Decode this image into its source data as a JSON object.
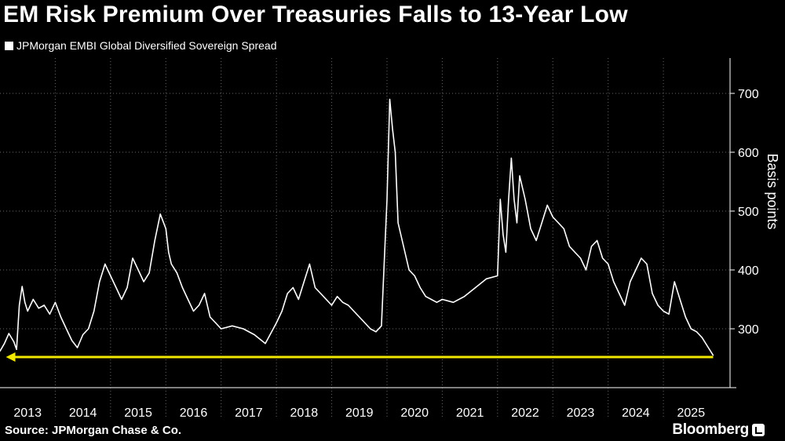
{
  "header": {
    "title": "EM Risk Premium Over Treasuries Falls to 13-Year Low",
    "legend_label": "JPMorgan EMBI Global Diversified Sovereign Spread"
  },
  "footer": {
    "source": "Source: JPMorgan Chase & Co.",
    "brand": "Bloomberg"
  },
  "colors": {
    "background": "#000000",
    "series": "#ffffff",
    "reference": "#f0e800",
    "grid": "#666666"
  },
  "chart_data": {
    "type": "line",
    "title": "EM Risk Premium Over Treasuries Falls to 13-Year Low",
    "xlabel": "",
    "ylabel": "Basis points",
    "ylim": [
      200,
      760
    ],
    "xlim": [
      2013,
      2025.95
    ],
    "x_ticks": [
      "2013",
      "2014",
      "2015",
      "2016",
      "2017",
      "2018",
      "2019",
      "2020",
      "2021",
      "2022",
      "2023",
      "2024",
      "2025"
    ],
    "y_ticks": [
      300,
      400,
      500,
      600,
      700
    ],
    "grid": "vertical dotted",
    "legend": "top-left",
    "series": [
      {
        "name": "JPMorgan EMBI Global Diversified Sovereign Spread",
        "x": [
          2013.0,
          2013.08,
          2013.16,
          2013.25,
          2013.3,
          2013.35,
          2013.4,
          2013.45,
          2013.5,
          2013.6,
          2013.7,
          2013.8,
          2013.9,
          2014.0,
          2014.1,
          2014.2,
          2014.3,
          2014.4,
          2014.5,
          2014.6,
          2014.7,
          2014.8,
          2014.9,
          2015.0,
          2015.1,
          2015.2,
          2015.3,
          2015.4,
          2015.5,
          2015.6,
          2015.7,
          2015.8,
          2015.9,
          2016.0,
          2016.05,
          2016.1,
          2016.2,
          2016.3,
          2016.4,
          2016.5,
          2016.6,
          2016.7,
          2016.8,
          2016.9,
          2017.0,
          2017.2,
          2017.4,
          2017.6,
          2017.8,
          2018.0,
          2018.1,
          2018.2,
          2018.3,
          2018.4,
          2018.5,
          2018.6,
          2018.7,
          2018.8,
          2018.9,
          2019.0,
          2019.1,
          2019.2,
          2019.3,
          2019.4,
          2019.5,
          2019.6,
          2019.7,
          2019.8,
          2019.9,
          2020.0,
          2020.05,
          2020.1,
          2020.15,
          2020.2,
          2020.25,
          2020.3,
          2020.35,
          2020.4,
          2020.5,
          2020.6,
          2020.7,
          2020.8,
          2020.9,
          2021.0,
          2021.2,
          2021.4,
          2021.6,
          2021.8,
          2022.0,
          2022.05,
          2022.1,
          2022.15,
          2022.2,
          2022.25,
          2022.3,
          2022.35,
          2022.4,
          2022.5,
          2022.6,
          2022.7,
          2022.8,
          2022.9,
          2023.0,
          2023.1,
          2023.2,
          2023.3,
          2023.4,
          2023.5,
          2023.6,
          2023.7,
          2023.8,
          2023.9,
          2024.0,
          2024.1,
          2024.2,
          2024.3,
          2024.4,
          2024.5,
          2024.6,
          2024.7,
          2024.8,
          2024.9,
          2025.0,
          2025.1,
          2025.2,
          2025.3,
          2025.4,
          2025.5,
          2025.6,
          2025.7,
          2025.8,
          2025.9
        ],
        "values": [
          262,
          275,
          292,
          278,
          265,
          340,
          372,
          345,
          330,
          350,
          335,
          340,
          325,
          345,
          320,
          300,
          280,
          268,
          290,
          300,
          330,
          380,
          410,
          390,
          370,
          350,
          370,
          420,
          400,
          380,
          395,
          450,
          495,
          470,
          430,
          410,
          395,
          370,
          350,
          330,
          340,
          360,
          320,
          310,
          300,
          305,
          300,
          290,
          275,
          310,
          330,
          360,
          370,
          350,
          380,
          410,
          370,
          360,
          350,
          340,
          355,
          345,
          340,
          330,
          320,
          310,
          300,
          295,
          305,
          520,
          690,
          640,
          600,
          480,
          460,
          440,
          420,
          400,
          390,
          370,
          355,
          350,
          345,
          350,
          345,
          355,
          370,
          385,
          390,
          520,
          460,
          430,
          520,
          590,
          520,
          480,
          560,
          520,
          470,
          450,
          480,
          510,
          490,
          480,
          470,
          440,
          430,
          420,
          400,
          440,
          450,
          420,
          410,
          380,
          360,
          340,
          380,
          400,
          420,
          410,
          360,
          340,
          330,
          325,
          380,
          350,
          320,
          300,
          295,
          285,
          270,
          255
        ]
      }
    ],
    "annotations": [
      {
        "type": "horizontal-line",
        "y": 252,
        "x_start": 2013.05,
        "x_end": 2025.9,
        "arrow": "left",
        "color": "#f0e800"
      }
    ]
  }
}
